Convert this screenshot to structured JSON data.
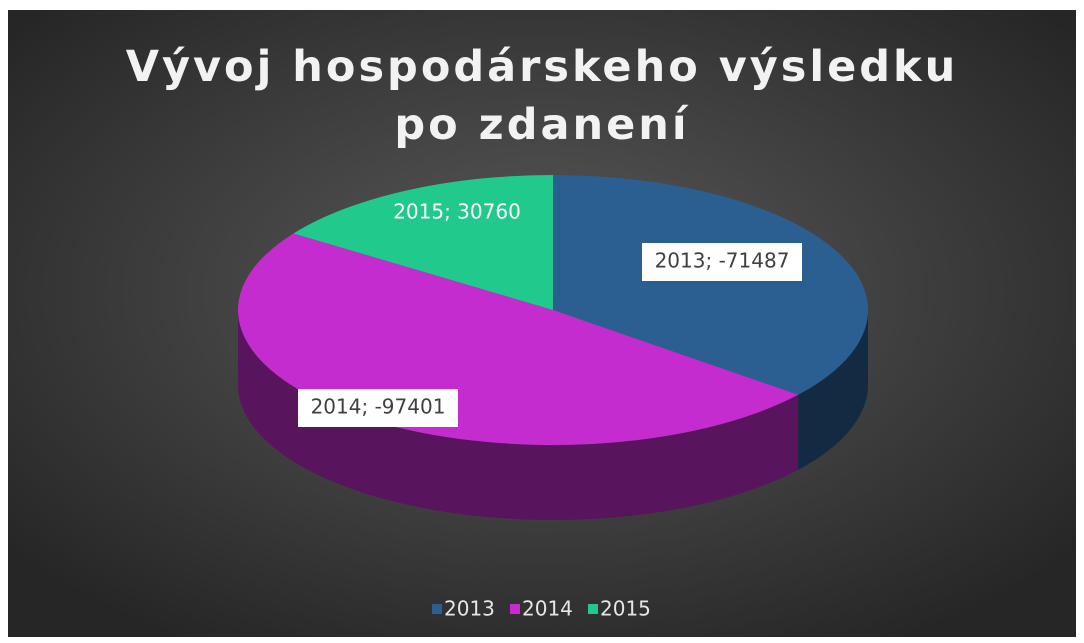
{
  "chart_data": {
    "type": "pie3d",
    "title": "Vývoj hospodárskeho výsledku po zdanení",
    "categories": [
      "2013",
      "2014",
      "2015"
    ],
    "values": [
      -71487,
      -97401,
      30760
    ],
    "value_labels": [
      "2013; -71487",
      "2014; -97401",
      "2015; 30760"
    ],
    "colors": [
      "#2b5f92",
      "#c42ccf",
      "#22c98c"
    ],
    "legend": "bottom"
  }
}
